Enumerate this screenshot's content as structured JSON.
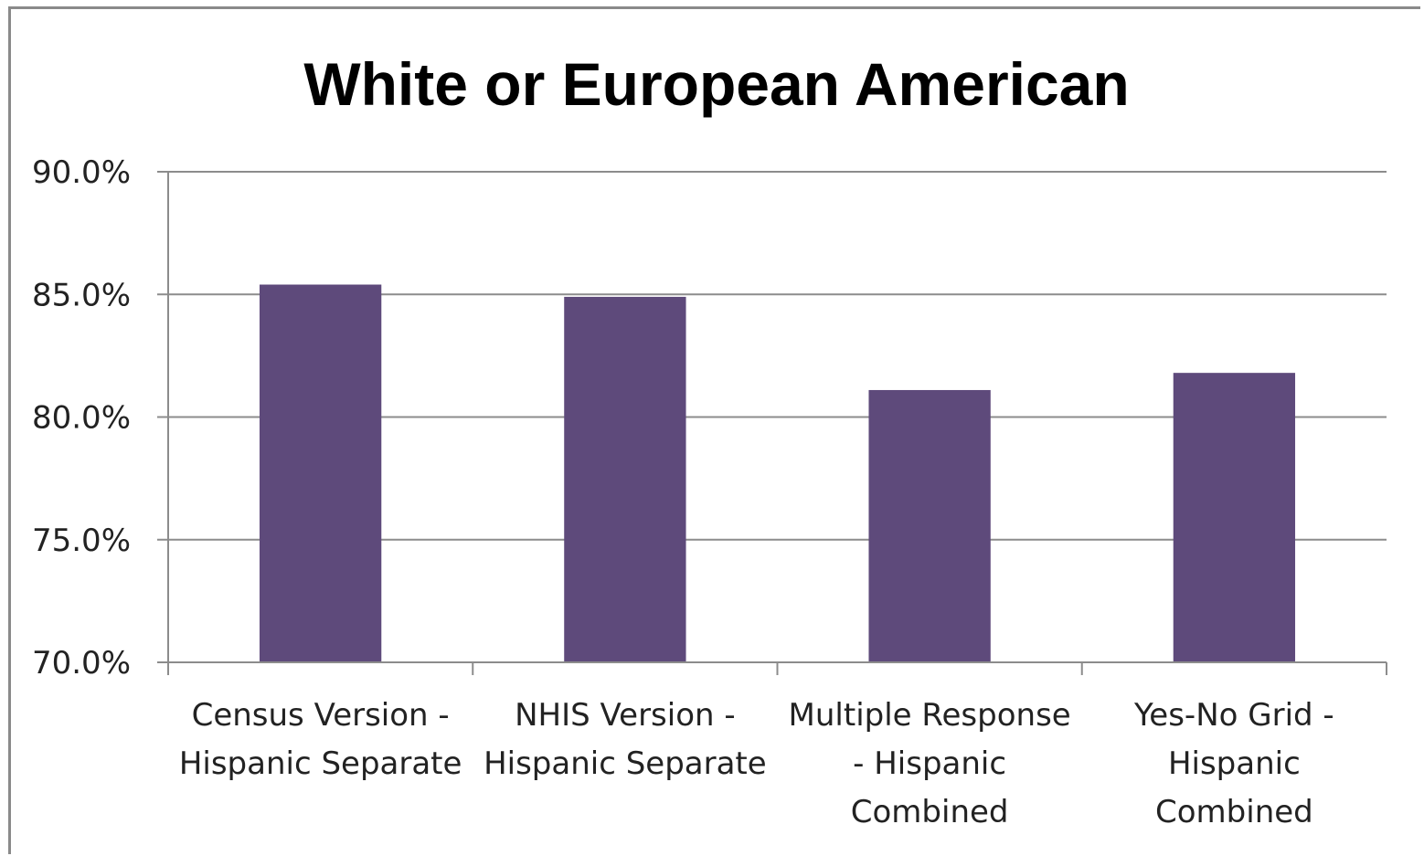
{
  "chart_data": {
    "type": "bar",
    "title": "White or European American",
    "categories": [
      [
        "Census Version -",
        "Hispanic Separate"
      ],
      [
        "NHIS Version -",
        "Hispanic Separate"
      ],
      [
        "Multiple Response",
        "- Hispanic",
        "Combined"
      ],
      [
        "Yes-No Grid -",
        "Hispanic",
        "Combined"
      ]
    ],
    "values": [
      85.4,
      84.9,
      81.1,
      81.8
    ],
    "ylim": [
      70,
      90
    ],
    "yticks": [
      "70.0%",
      "75.0%",
      "80.0%",
      "85.0%",
      "90.0%"
    ],
    "ytick_values": [
      70,
      75,
      80,
      85,
      90
    ],
    "bar_color": "#5e4a7b",
    "grid": true,
    "legend": "none",
    "xlabel": "",
    "ylabel": ""
  }
}
